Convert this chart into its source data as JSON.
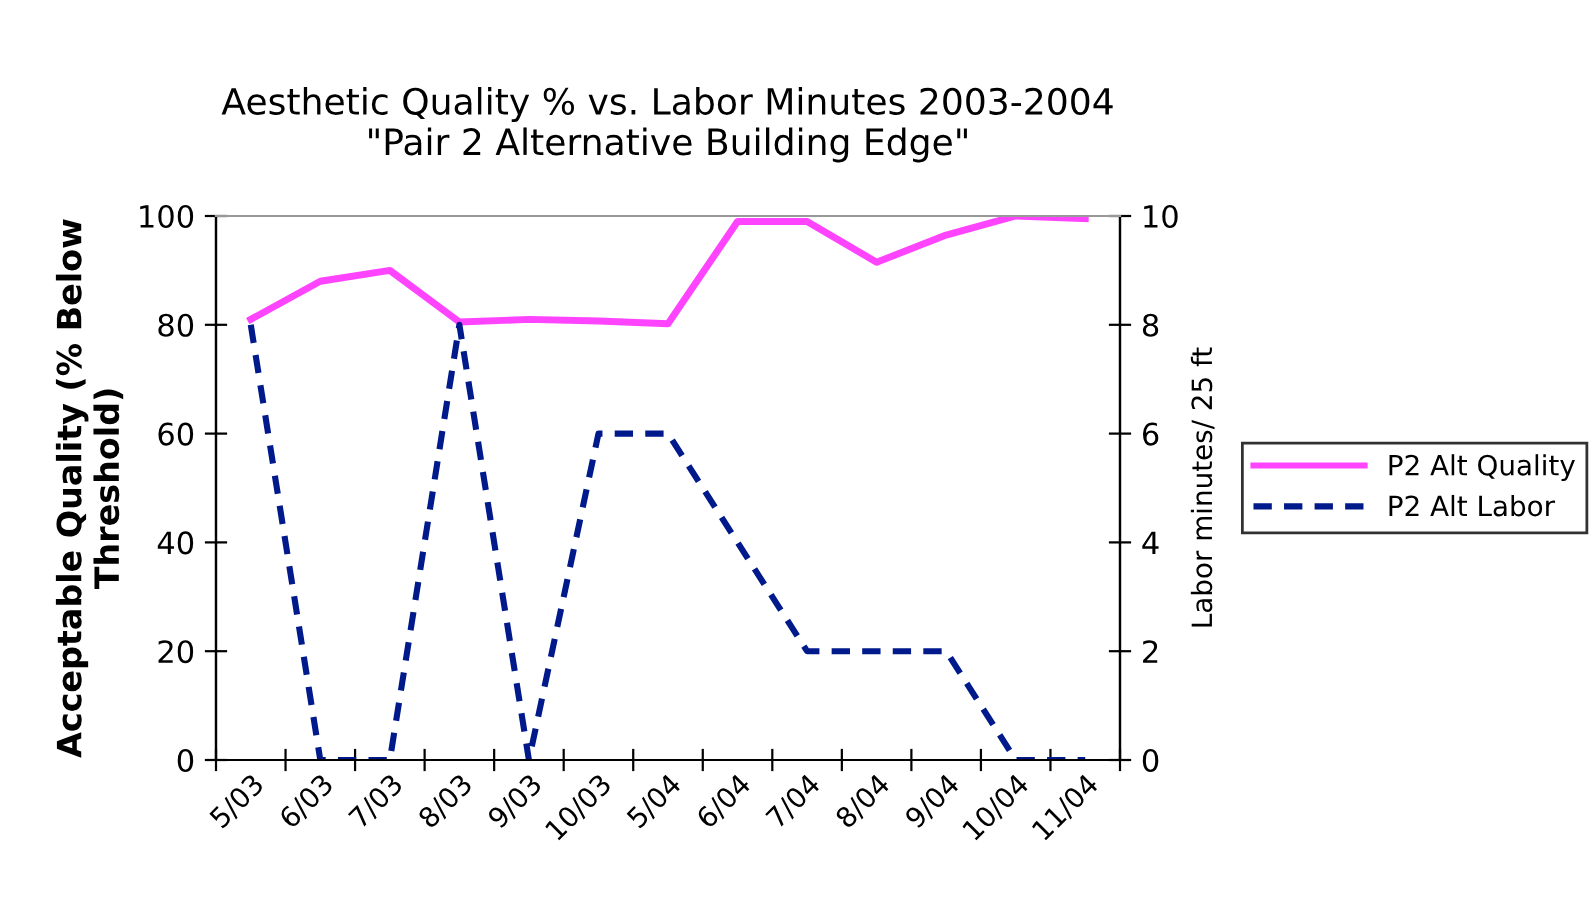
{
  "chart_data": {
    "type": "line",
    "title": "Aesthetic Quality % vs. Labor Minutes 2003-2004\n\"Pair 2 Alternative Building Edge\"",
    "ylabel": "Acceptable Quality (% Below\nThreshold)",
    "y2label": "Labor minutes/ 25 ft",
    "categories": [
      "5/03",
      "6/03",
      "7/03",
      "8/03",
      "9/03",
      "10/03",
      "5/04",
      "6/04",
      "7/04",
      "8/04",
      "9/04",
      "10/04",
      "11/04"
    ],
    "series": [
      {
        "name": "P2 Alt Quality",
        "color": "#ff44ff",
        "line_style": "solid",
        "values": [
          81,
          88,
          90,
          80.5,
          81,
          80.7,
          80.2,
          99,
          99,
          91.5,
          96.5,
          100,
          99.5
        ]
      },
      {
        "name": "P2 Alt Labor",
        "color": "#001a8c",
        "line_style": "dashed",
        "axis": "y2",
        "values": [
          8,
          0,
          0,
          8,
          0,
          6,
          6,
          4,
          2,
          2,
          2,
          0,
          0
        ]
      }
    ],
    "ylim": [
      0,
      100
    ],
    "yticks": [
      0,
      20,
      40,
      60,
      80,
      100
    ],
    "y2lim": [
      0,
      10
    ],
    "y2ticks": [
      0,
      2,
      4,
      6,
      8,
      10
    ],
    "grid": false,
    "legend": "right",
    "marker": "none"
  }
}
